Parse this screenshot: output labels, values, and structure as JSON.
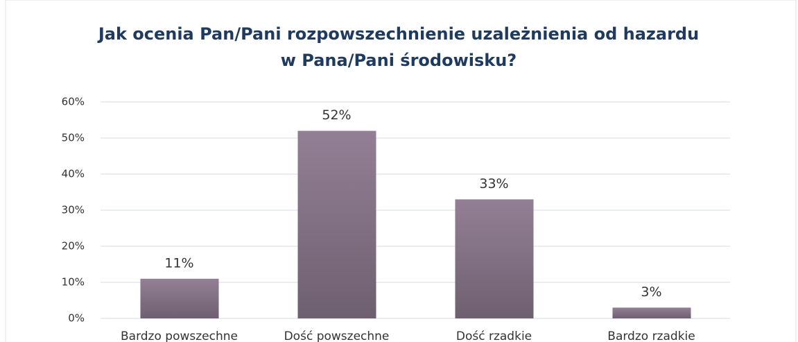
{
  "chart_data": {
    "type": "bar",
    "title": "Jak ocenia Pan/Pani rozpowszechnienie uzależnienia od hazardu w Pana/Pani środowisku?",
    "categories": [
      "Bardzo powszechne",
      "Dość powszechne",
      "Dość rzadkie",
      "Bardzo rzadkie"
    ],
    "values": [
      11,
      52,
      33,
      3
    ],
    "value_labels": [
      "11%",
      "52%",
      "33%",
      "3%"
    ],
    "color": "#937f95",
    "ylim": [
      0,
      60
    ],
    "yticks": [
      {
        "value": 0,
        "label": "0%"
      },
      {
        "value": 10,
        "label": "10%"
      },
      {
        "value": 20,
        "label": "20%"
      },
      {
        "value": 30,
        "label": "30%"
      },
      {
        "value": 40,
        "label": "40%"
      },
      {
        "value": 50,
        "label": "50%"
      },
      {
        "value": 60,
        "label": "60%"
      }
    ],
    "grid": true
  }
}
